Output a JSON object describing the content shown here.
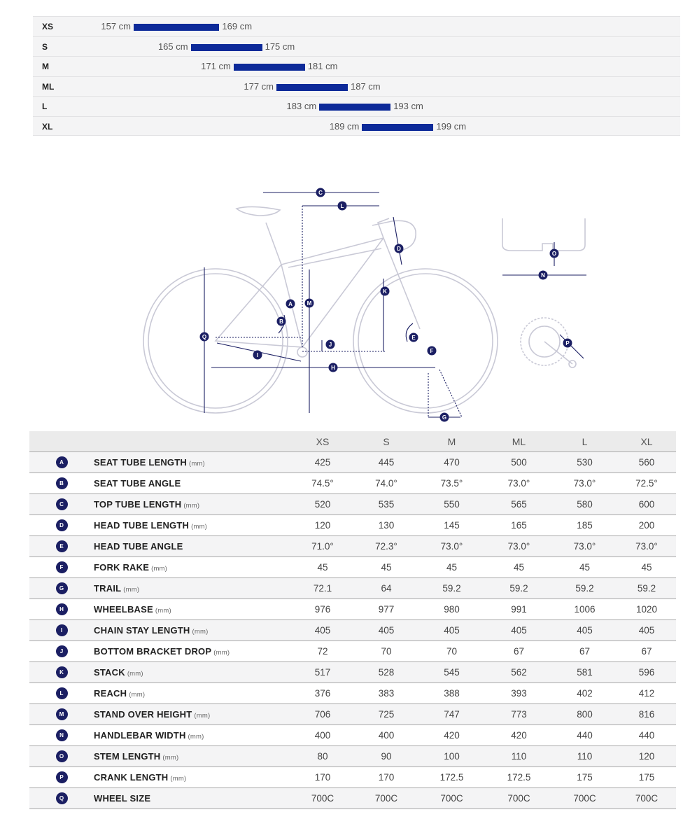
{
  "brand_color": "#0d2a99",
  "diagram_color": "#1b1f63",
  "size_chart": [
    {
      "size": "XS",
      "min": 157,
      "max": 169,
      "min_label": "157 cm",
      "max_label": "169 cm"
    },
    {
      "size": "S",
      "min": 165,
      "max": 175,
      "min_label": "165 cm",
      "max_label": "175 cm"
    },
    {
      "size": "M",
      "min": 171,
      "max": 181,
      "min_label": "171 cm",
      "max_label": "181 cm"
    },
    {
      "size": "ML",
      "min": 177,
      "max": 187,
      "min_label": "177 cm",
      "max_label": "187 cm"
    },
    {
      "size": "L",
      "min": 183,
      "max": 193,
      "min_label": "183 cm",
      "max_label": "193 cm"
    },
    {
      "size": "XL",
      "min": 189,
      "max": 199,
      "min_label": "189 cm",
      "max_label": "199 cm"
    }
  ],
  "diagram_labels": [
    "A",
    "B",
    "C",
    "D",
    "E",
    "F",
    "G",
    "H",
    "I",
    "J",
    "K",
    "L",
    "M",
    "N",
    "O",
    "P",
    "Q"
  ],
  "geometry": {
    "sizes": [
      "XS",
      "S",
      "M",
      "ML",
      "L",
      "XL"
    ],
    "rows": [
      {
        "letter": "A",
        "name": "SEAT TUBE LENGTH",
        "unit": "(mm)",
        "values": [
          "425",
          "445",
          "470",
          "500",
          "530",
          "560"
        ]
      },
      {
        "letter": "B",
        "name": "SEAT TUBE ANGLE",
        "unit": "",
        "values": [
          "74.5°",
          "74.0°",
          "73.5°",
          "73.0°",
          "73.0°",
          "72.5°"
        ]
      },
      {
        "letter": "C",
        "name": "TOP TUBE LENGTH",
        "unit": "(mm)",
        "values": [
          "520",
          "535",
          "550",
          "565",
          "580",
          "600"
        ]
      },
      {
        "letter": "D",
        "name": "HEAD TUBE LENGTH",
        "unit": "(mm)",
        "values": [
          "120",
          "130",
          "145",
          "165",
          "185",
          "200"
        ]
      },
      {
        "letter": "E",
        "name": "HEAD TUBE ANGLE",
        "unit": "",
        "values": [
          "71.0°",
          "72.3°",
          "73.0°",
          "73.0°",
          "73.0°",
          "73.0°"
        ]
      },
      {
        "letter": "F",
        "name": "FORK RAKE",
        "unit": "(mm)",
        "values": [
          "45",
          "45",
          "45",
          "45",
          "45",
          "45"
        ]
      },
      {
        "letter": "G",
        "name": "TRAIL",
        "unit": "(mm)",
        "values": [
          "72.1",
          "64",
          "59.2",
          "59.2",
          "59.2",
          "59.2"
        ]
      },
      {
        "letter": "H",
        "name": "WHEELBASE",
        "unit": "(mm)",
        "values": [
          "976",
          "977",
          "980",
          "991",
          "1006",
          "1020"
        ]
      },
      {
        "letter": "I",
        "name": "CHAIN STAY LENGTH",
        "unit": "(mm)",
        "values": [
          "405",
          "405",
          "405",
          "405",
          "405",
          "405"
        ]
      },
      {
        "letter": "J",
        "name": "BOTTOM BRACKET DROP",
        "unit": "(mm)",
        "values": [
          "72",
          "70",
          "70",
          "67",
          "67",
          "67"
        ]
      },
      {
        "letter": "K",
        "name": "STACK",
        "unit": "(mm)",
        "values": [
          "517",
          "528",
          "545",
          "562",
          "581",
          "596"
        ]
      },
      {
        "letter": "L",
        "name": "REACH",
        "unit": "(mm)",
        "values": [
          "376",
          "383",
          "388",
          "393",
          "402",
          "412"
        ]
      },
      {
        "letter": "M",
        "name": "STAND OVER HEIGHT",
        "unit": "(mm)",
        "values": [
          "706",
          "725",
          "747",
          "773",
          "800",
          "816"
        ]
      },
      {
        "letter": "N",
        "name": "HANDLEBAR WIDTH",
        "unit": "(mm)",
        "values": [
          "400",
          "400",
          "420",
          "420",
          "440",
          "440"
        ]
      },
      {
        "letter": "O",
        "name": "STEM LENGTH",
        "unit": "(mm)",
        "values": [
          "80",
          "90",
          "100",
          "110",
          "110",
          "120"
        ]
      },
      {
        "letter": "P",
        "name": "CRANK LENGTH",
        "unit": "(mm)",
        "values": [
          "170",
          "170",
          "172.5",
          "172.5",
          "175",
          "175"
        ]
      },
      {
        "letter": "Q",
        "name": "WHEEL SIZE",
        "unit": "",
        "values": [
          "700C",
          "700C",
          "700C",
          "700C",
          "700C",
          "700C"
        ]
      }
    ]
  }
}
